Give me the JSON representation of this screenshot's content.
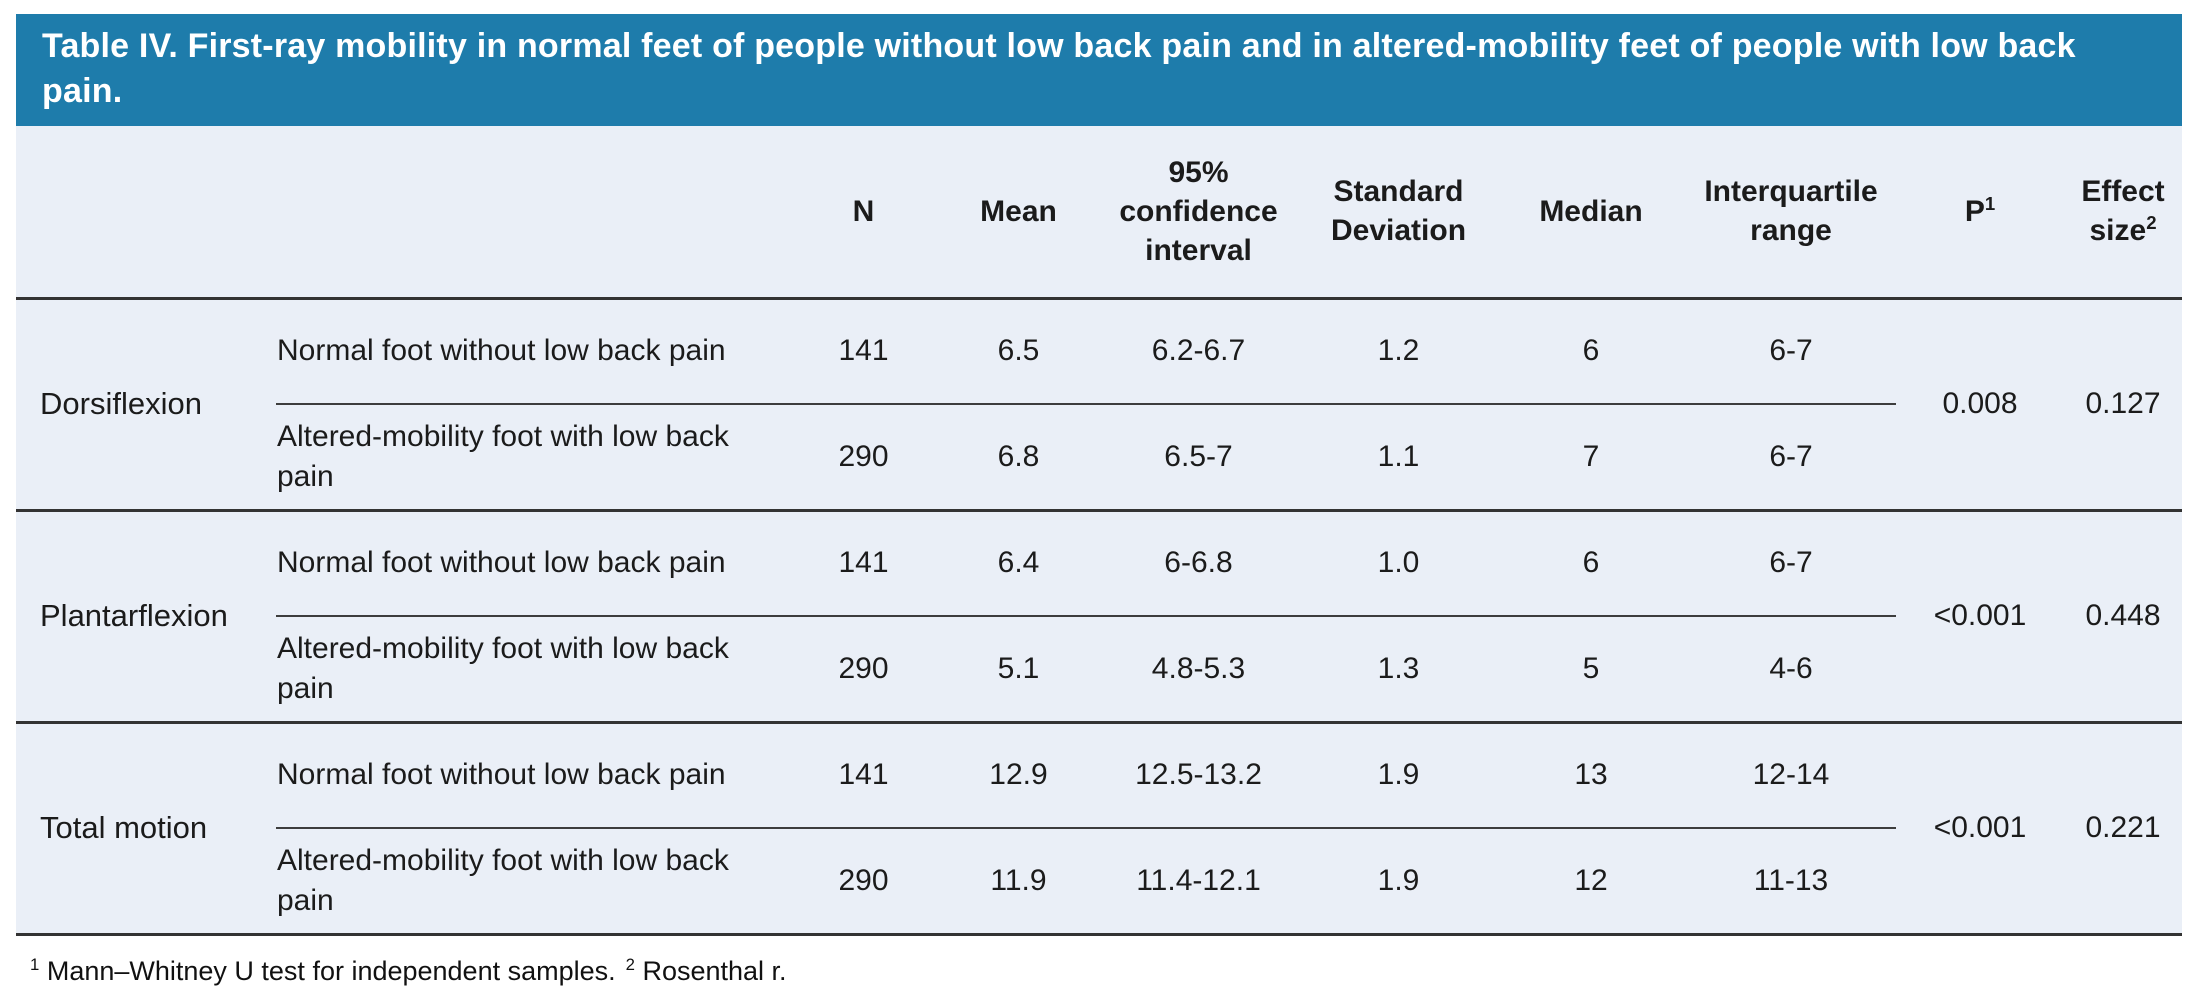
{
  "title_bar": {
    "text": "Table IV. First-ray mobility in normal feet of people without low back pain and in altered-mobility feet of people with low back pain.",
    "background_color": "#1E7CAB",
    "text_color": "#FFFFFF"
  },
  "table": {
    "background_color": "#EAEFF7",
    "rule_color": "#333333",
    "columns": [
      {
        "label": "N"
      },
      {
        "label": "Mean"
      },
      {
        "label": "95% confidence interval"
      },
      {
        "label": "Standard Deviation"
      },
      {
        "label": "Median"
      },
      {
        "label": "Interquartile range"
      },
      {
        "label": "P",
        "sup": "1"
      },
      {
        "label": "Effect size",
        "sup": "2"
      }
    ],
    "groups": [
      {
        "label": "Dorsiflexion",
        "rows": [
          {
            "condition": "Normal foot without low back pain",
            "n": "141",
            "mean": "6.5",
            "ci": "6.2-6.7",
            "sd": "1.2",
            "median": "6",
            "iqr": "6-7"
          },
          {
            "condition": "Altered-mobility foot with low back pain",
            "n": "290",
            "mean": "6.8",
            "ci": "6.5-7",
            "sd": "1.1",
            "median": "7",
            "iqr": "6-7"
          }
        ],
        "p": "0.008",
        "effect_size": "0.127"
      },
      {
        "label": "Plantarflexion",
        "rows": [
          {
            "condition": "Normal foot without low back pain",
            "n": "141",
            "mean": "6.4",
            "ci": "6-6.8",
            "sd": "1.0",
            "median": "6",
            "iqr": "6-7"
          },
          {
            "condition": "Altered-mobility foot with low back pain",
            "n": "290",
            "mean": "5.1",
            "ci": "4.8-5.3",
            "sd": "1.3",
            "median": "5",
            "iqr": "4-6"
          }
        ],
        "p": "<0.001",
        "effect_size": "0.448"
      },
      {
        "label": "Total motion",
        "rows": [
          {
            "condition": "Normal foot without low back pain",
            "n": "141",
            "mean": "12.9",
            "ci": "12.5-13.2",
            "sd": "1.9",
            "median": "13",
            "iqr": "12-14"
          },
          {
            "condition": "Altered-mobility foot with low back pain",
            "n": "290",
            "mean": "11.9",
            "ci": "11.4-12.1",
            "sd": "1.9",
            "median": "12",
            "iqr": "11-13"
          }
        ],
        "p": "<0.001",
        "effect_size": "0.221"
      }
    ]
  },
  "footnotes": [
    {
      "sup": "1",
      "text": "Mann–Whitney U test for independent samples."
    },
    {
      "sup": "2",
      "text": "Rosenthal r."
    }
  ]
}
